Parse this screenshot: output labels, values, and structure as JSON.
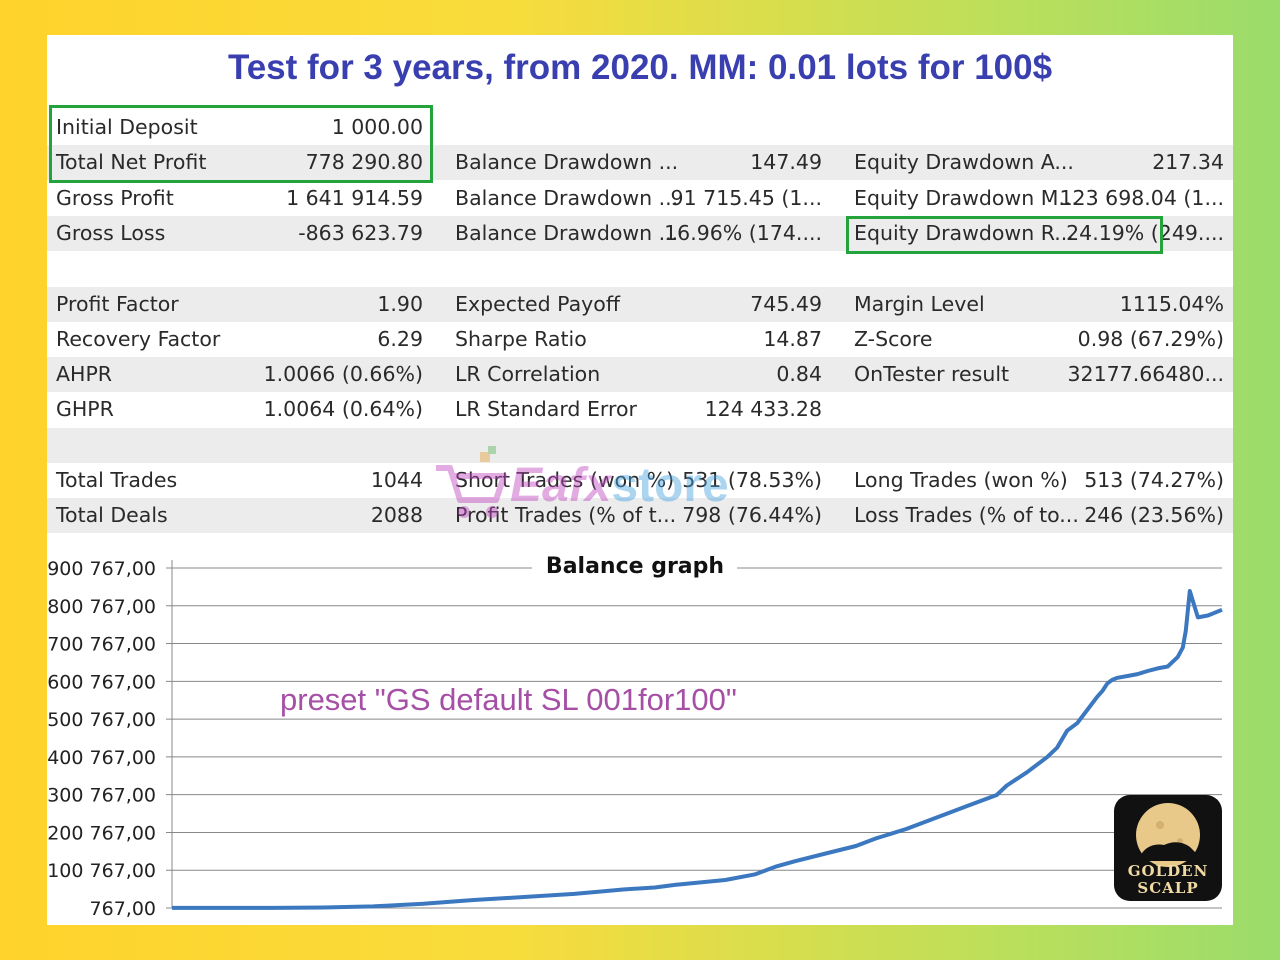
{
  "report": {
    "title": "Test for 3 years, from 2020. MM: 0.01 lots for 100$",
    "rows": [
      {
        "c1_label": "Initial Deposit",
        "c1_value": "1 000.00",
        "c2_label": "",
        "c2_value": "",
        "c3_label": "",
        "c3_value": ""
      },
      {
        "c1_label": "Total Net Profit",
        "c1_value": "778 290.80",
        "c2_label": "Balance Drawdown ...",
        "c2_value": "147.49",
        "c3_label": "Equity Drawdown A...",
        "c3_value": "217.34"
      },
      {
        "c1_label": "Gross Profit",
        "c1_value": "1 641 914.59",
        "c2_label": "Balance Drawdown ...",
        "c2_value": "91 715.45 (1...",
        "c3_label": "Equity Drawdown M...",
        "c3_value": "123 698.04 (1..."
      },
      {
        "c1_label": "Gross Loss",
        "c1_value": "-863 623.79",
        "c2_label": "Balance Drawdown ...",
        "c2_value": "16.96% (174....",
        "c3_label": "Equity Drawdown R...",
        "c3_value": "24.19% (249...."
      },
      {
        "c1_label": "",
        "c1_value": "",
        "c2_label": "",
        "c2_value": "",
        "c3_label": "",
        "c3_value": ""
      },
      {
        "c1_label": "Profit Factor",
        "c1_value": "1.90",
        "c2_label": "Expected Payoff",
        "c2_value": "745.49",
        "c3_label": "Margin Level",
        "c3_value": "1115.04%"
      },
      {
        "c1_label": "Recovery Factor",
        "c1_value": "6.29",
        "c2_label": "Sharpe Ratio",
        "c2_value": "14.87",
        "c3_label": "Z-Score",
        "c3_value": "0.98 (67.29%)"
      },
      {
        "c1_label": "AHPR",
        "c1_value": "1.0066 (0.66%)",
        "c2_label": "LR Correlation",
        "c2_value": "0.84",
        "c3_label": "OnTester result",
        "c3_value": "32177.66480..."
      },
      {
        "c1_label": "GHPR",
        "c1_value": "1.0064 (0.64%)",
        "c2_label": "LR Standard Error",
        "c2_value": "124 433.28",
        "c3_label": "",
        "c3_value": ""
      },
      {
        "c1_label": "",
        "c1_value": "",
        "c2_label": "",
        "c2_value": "",
        "c3_label": "",
        "c3_value": ""
      },
      {
        "c1_label": "Total Trades",
        "c1_value": "1044",
        "c2_label": "Short Trades (won %)",
        "c2_value": "531 (78.53%)",
        "c3_label": "Long Trades (won %)",
        "c3_value": "513 (74.27%)"
      },
      {
        "c1_label": "Total Deals",
        "c1_value": "2088",
        "c2_label": "Profit Trades (% of t...",
        "c2_value": "798 (76.44%)",
        "c3_label": "Loss Trades (% of to...",
        "c3_value": "246 (23.56%)"
      }
    ]
  },
  "watermark": {
    "part1": "Eafx",
    "part2": "store"
  },
  "chart_data": {
    "type": "line",
    "title": "Balance graph",
    "annotation": "preset \"GS default SL 001for100\"",
    "y_tick_labels": [
      "900 767,00",
      "800 767,00",
      "700 767,00",
      "600 767,00",
      "500 767,00",
      "400 767,00",
      "300 767,00",
      "200 767,00",
      "100 767,00",
      "767,00"
    ],
    "y_ticks": [
      900767,
      800767,
      700767,
      600767,
      500767,
      400767,
      300767,
      200767,
      100767,
      767
    ],
    "ylim": [
      767,
      900767
    ],
    "xlim": [
      0,
      1044
    ],
    "grid": true,
    "line_color": "#3c78c0",
    "series": [
      {
        "x": [
          0,
          50,
          100,
          150,
          200,
          250,
          300,
          350,
          400,
          450,
          480,
          500,
          550,
          580,
          600,
          620,
          650,
          680,
          700,
          730,
          760,
          790,
          820,
          830,
          850,
          870,
          880,
          890,
          900,
          910,
          920,
          925,
          930,
          935,
          940,
          950,
          960,
          970,
          980,
          990,
          1000,
          1005,
          1008,
          1012,
          1020,
          1030,
          1044
        ],
        "y": [
          1000,
          1000,
          1000,
          2000,
          5000,
          12000,
          22000,
          30000,
          38000,
          50000,
          55000,
          62000,
          75000,
          90000,
          110000,
          125000,
          145000,
          165000,
          185000,
          210000,
          240000,
          270000,
          300000,
          325000,
          360000,
          400000,
          425000,
          470000,
          490000,
          525000,
          560000,
          575000,
          595000,
          605000,
          610000,
          615000,
          620000,
          628000,
          635000,
          640000,
          665000,
          690000,
          735000,
          840000,
          770000,
          775000,
          790000
        ]
      }
    ]
  },
  "logo": {
    "line1": "GOLDEN",
    "line2": "SCALP"
  }
}
